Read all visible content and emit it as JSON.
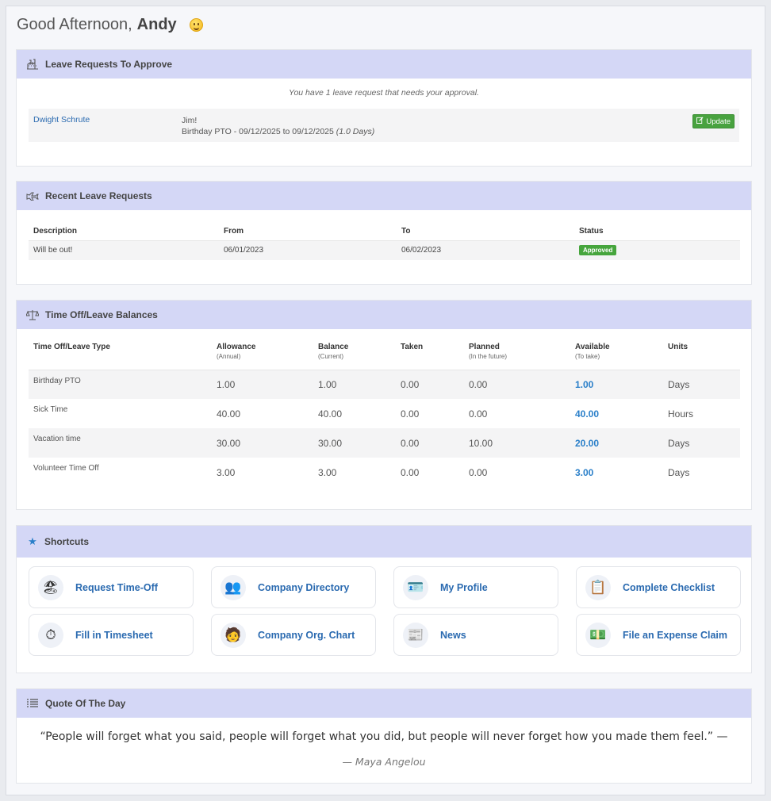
{
  "greeting": {
    "prefix": "Good Afternoon,",
    "name": "Andy"
  },
  "leave_approve": {
    "title": "Leave Requests To Approve",
    "note": "You have 1 leave request that needs your approval.",
    "request": {
      "employee": "Dwight Schrute",
      "message": "Jim!",
      "detail": "Birthday PTO - 09/12/2025 to 09/12/2025",
      "days": "(1.0 Days)",
      "button": "Update"
    }
  },
  "recent": {
    "title": "Recent Leave Requests",
    "columns": [
      "Description",
      "From",
      "To",
      "Status"
    ],
    "rows": [
      {
        "description": "Will be out!",
        "from": "06/01/2023",
        "to": "06/02/2023",
        "status": "Approved"
      }
    ]
  },
  "balances": {
    "title": "Time Off/Leave Balances",
    "columns": [
      {
        "label": "Time Off/Leave Type",
        "sub": ""
      },
      {
        "label": "Allowance",
        "sub": "(Annual)"
      },
      {
        "label": "Balance",
        "sub": "(Current)"
      },
      {
        "label": "Taken",
        "sub": ""
      },
      {
        "label": "Planned",
        "sub": "(In the future)"
      },
      {
        "label": "Available",
        "sub": "(To take)"
      },
      {
        "label": "Units",
        "sub": ""
      }
    ],
    "rows": [
      {
        "type": "Birthday PTO",
        "allowance": "1.00",
        "balance": "1.00",
        "taken": "0.00",
        "planned": "0.00",
        "available": "1.00",
        "units": "Days"
      },
      {
        "type": "Sick Time",
        "allowance": "40.00",
        "balance": "40.00",
        "taken": "0.00",
        "planned": "0.00",
        "available": "40.00",
        "units": "Hours"
      },
      {
        "type": "Vacation time",
        "allowance": "30.00",
        "balance": "30.00",
        "taken": "0.00",
        "planned": "10.00",
        "available": "20.00",
        "units": "Days"
      },
      {
        "type": "Volunteer Time Off",
        "allowance": "3.00",
        "balance": "3.00",
        "taken": "0.00",
        "planned": "0.00",
        "available": "3.00",
        "units": "Days"
      }
    ]
  },
  "shortcuts": {
    "title": "Shortcuts",
    "items": [
      {
        "label": "Request Time-Off",
        "icon": "request-time-off-icon"
      },
      {
        "label": "Company Directory",
        "icon": "company-directory-icon"
      },
      {
        "label": "My Profile",
        "icon": "my-profile-icon"
      },
      {
        "label": "Complete Checklist",
        "icon": "checklist-icon"
      },
      {
        "label": "Fill in Timesheet",
        "icon": "timesheet-icon"
      },
      {
        "label": "Company Org. Chart",
        "icon": "org-chart-icon"
      },
      {
        "label": "News",
        "icon": "news-icon"
      },
      {
        "label": "File an Expense Claim",
        "icon": "expense-claim-icon"
      }
    ]
  },
  "quote": {
    "title": "Quote Of The Day",
    "text": "“People will forget what you said, people will forget what you did, but people will never forget how you made them feel.” —",
    "author": "— Maya Angelou"
  },
  "colors": {
    "header_bg": "#d4d7f6",
    "link": "#2a6ab0",
    "available": "#2a7fc9",
    "success": "#48a23f"
  }
}
